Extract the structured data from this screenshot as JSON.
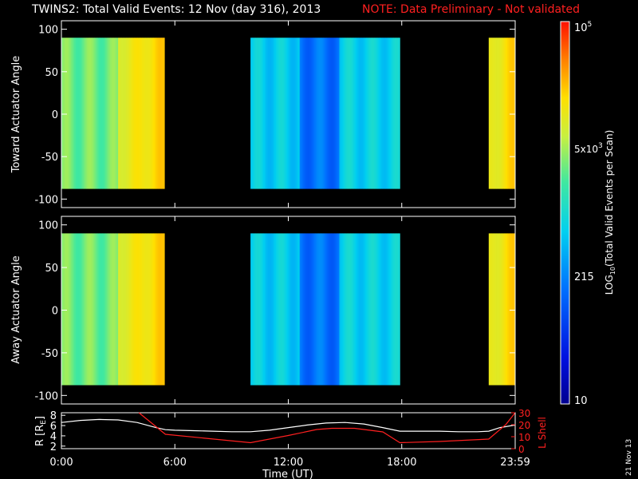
{
  "header": {
    "title": "TWINS2: Total Valid Events: 12 Nov (day 316), 2013",
    "note": "NOTE: Data Preliminary - Not validated"
  },
  "footer": {
    "stamp": "21 Nov 13"
  },
  "chart_data": [
    {
      "type": "heatmap",
      "ylabel": "Toward Actuator Angle",
      "ylim": [
        -110,
        110
      ],
      "yticks": [
        100,
        50,
        0,
        -50,
        -100
      ],
      "xlim": [
        0,
        24
      ],
      "angle_range": [
        -88,
        90
      ],
      "columns": [
        {
          "start": 0.0,
          "end": 3.0,
          "log_level": 0.62
        },
        {
          "start": 3.0,
          "end": 5.45,
          "log_level": 0.8
        },
        {
          "start": 10.0,
          "end": 12.6,
          "log_level": 0.45
        },
        {
          "start": 12.6,
          "end": 14.7,
          "log_level": 0.3
        },
        {
          "start": 14.7,
          "end": 17.9,
          "log_level": 0.46
        },
        {
          "start": 22.6,
          "end": 24.0,
          "log_level": 0.8
        }
      ]
    },
    {
      "type": "heatmap",
      "ylabel": "Away Actuator Angle",
      "ylim": [
        -110,
        110
      ],
      "yticks": [
        100,
        50,
        0,
        -50,
        -100
      ],
      "xlim": [
        0,
        24
      ],
      "angle_range": [
        -88,
        90
      ],
      "columns": [
        {
          "start": 0.0,
          "end": 3.0,
          "log_level": 0.62
        },
        {
          "start": 3.0,
          "end": 5.45,
          "log_level": 0.8
        },
        {
          "start": 10.0,
          "end": 12.6,
          "log_level": 0.45
        },
        {
          "start": 12.6,
          "end": 14.7,
          "log_level": 0.3
        },
        {
          "start": 14.7,
          "end": 17.9,
          "log_level": 0.46
        },
        {
          "start": 22.6,
          "end": 24.0,
          "log_level": 0.8
        }
      ]
    },
    {
      "type": "line",
      "xlabel": "Time (UT)",
      "xlim": [
        0,
        24
      ],
      "xticks": [
        "0:00",
        "6:00",
        "12:00",
        "18:00",
        "23:59"
      ],
      "xtick_values": [
        0,
        6,
        12,
        18,
        24
      ],
      "left_axis": {
        "label": "R [R",
        "label_sub": "E",
        "label_end": "]",
        "ylim": [
          1.5,
          8.5
        ],
        "yticks": [
          2,
          4,
          6,
          8
        ]
      },
      "right_axis": {
        "label": "L Shell",
        "ylim": [
          0,
          30
        ],
        "yticks": [
          0,
          10,
          20,
          30
        ]
      },
      "series": [
        {
          "axis": "left",
          "color": "#ffffff",
          "x": [
            0,
            1,
            2,
            3,
            4,
            5,
            5.5,
            6,
            7,
            8,
            9,
            10,
            11,
            12,
            13,
            14,
            15,
            16,
            17,
            17.9,
            19,
            20,
            21,
            22,
            22.6,
            23.2,
            24
          ],
          "y": [
            6.6,
            7.0,
            7.2,
            7.1,
            6.6,
            5.6,
            5.2,
            5.1,
            5.0,
            4.9,
            4.8,
            4.8,
            5.1,
            5.6,
            6.1,
            6.5,
            6.6,
            6.3,
            5.6,
            4.9,
            4.9,
            4.9,
            4.8,
            4.8,
            4.9,
            5.6,
            6.1
          ]
        },
        {
          "axis": "right",
          "color": "#ff2020",
          "x": [
            4.1,
            5.5,
            10.0,
            12.0,
            13.5,
            14.3,
            15.5,
            17.0,
            17.9,
            20.0,
            22.6,
            23.5,
            24.0
          ],
          "y": [
            30,
            12,
            5,
            11,
            16,
            17,
            17,
            14,
            5,
            6,
            8,
            20,
            30
          ]
        }
      ]
    }
  ],
  "colorbar": {
    "label_pre": "LOG",
    "label_sub": "10",
    "label_post": "(Total Valid  Events per Scan)",
    "max_base": "10",
    "max_exp": "5",
    "mid_base": "5x10",
    "mid_exp": "3",
    "low_label": "215",
    "min_label": "10"
  }
}
